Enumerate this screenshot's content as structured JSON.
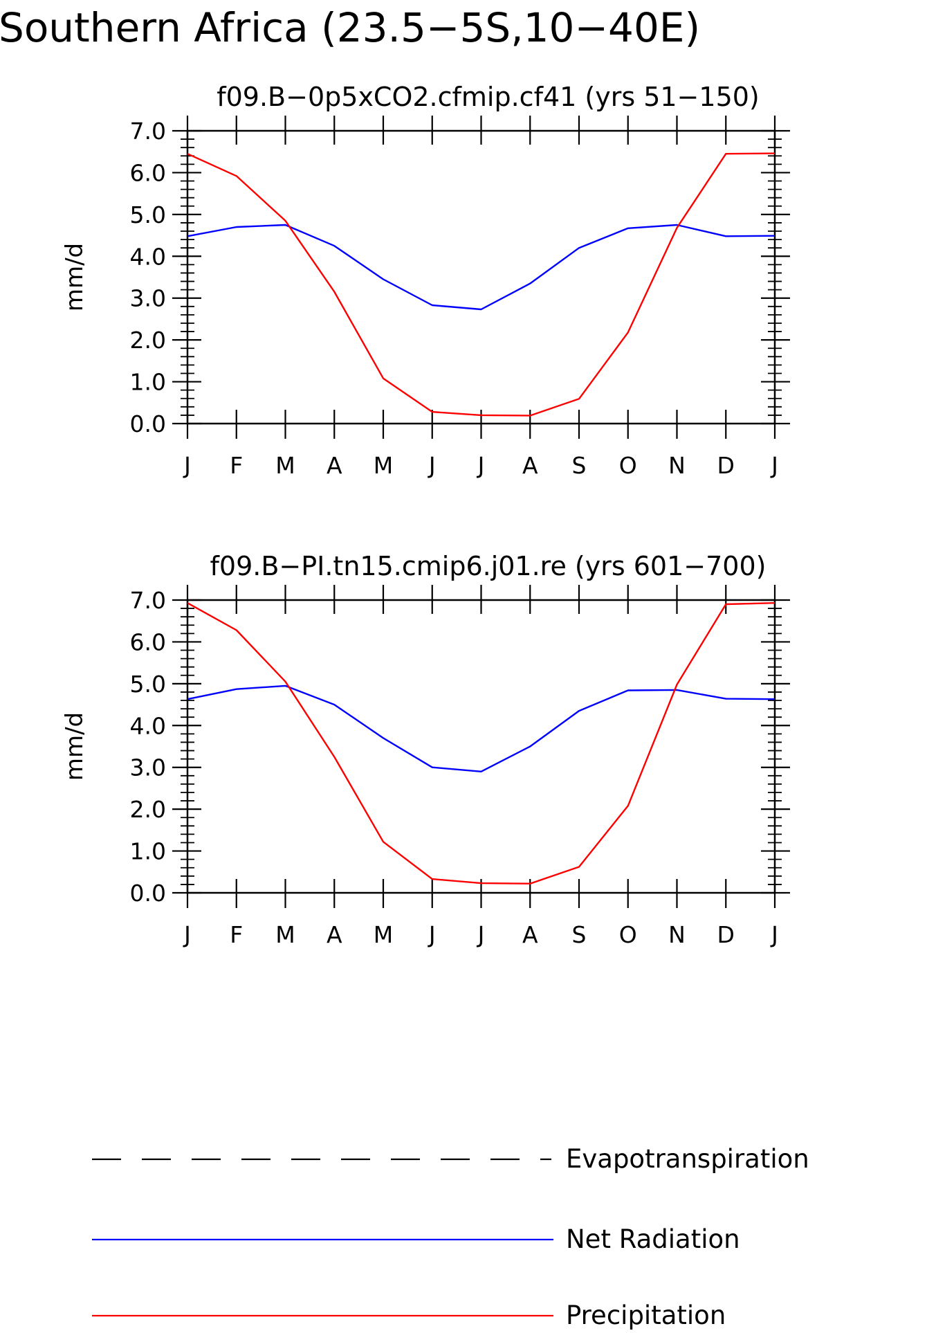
{
  "figure": {
    "title": "Southern Africa (23.5−5S,10−40E)"
  },
  "legend": {
    "placement": "bottom",
    "entries": [
      {
        "label": "Evapotranspiration",
        "color": "#000000",
        "style": "dashed"
      },
      {
        "label": "Net Radiation",
        "color": "#0000ff",
        "style": "solid"
      },
      {
        "label": "Precipitation",
        "color": "#ff0000",
        "style": "solid"
      }
    ]
  },
  "chart_data": [
    {
      "type": "line",
      "title": "f09.B−0p5xCO2.cfmip.cf41 (yrs 51−150)",
      "ylabel": "mm/d",
      "xlabel": "",
      "ylim": [
        0,
        7
      ],
      "yticks": [
        "0.0",
        "1.0",
        "2.0",
        "3.0",
        "4.0",
        "5.0",
        "6.0",
        "7.0"
      ],
      "categories": [
        "J",
        "F",
        "M",
        "A",
        "M",
        "J",
        "J",
        "A",
        "S",
        "O",
        "N",
        "D",
        "J"
      ],
      "grid": false,
      "series": [
        {
          "name": "Net Radiation",
          "color": "#0000ff",
          "values": [
            4.48,
            4.7,
            4.75,
            4.25,
            3.45,
            2.83,
            2.73,
            3.35,
            4.2,
            4.67,
            4.75,
            4.48,
            4.49
          ]
        },
        {
          "name": "Precipitation",
          "color": "#ff0000",
          "values": [
            6.45,
            5.92,
            4.85,
            3.15,
            1.08,
            0.28,
            0.2,
            0.19,
            0.59,
            2.18,
            4.68,
            6.45,
            6.46
          ]
        }
      ]
    },
    {
      "type": "line",
      "title": "f09.B−PI.tn15.cmip6.j01.re (yrs 601−700)",
      "ylabel": "mm/d",
      "xlabel": "",
      "ylim": [
        0,
        7
      ],
      "yticks": [
        "0.0",
        "1.0",
        "2.0",
        "3.0",
        "4.0",
        "5.0",
        "6.0",
        "7.0"
      ],
      "categories": [
        "J",
        "F",
        "M",
        "A",
        "M",
        "J",
        "J",
        "A",
        "S",
        "O",
        "N",
        "D",
        "J"
      ],
      "grid": false,
      "series": [
        {
          "name": "Net Radiation",
          "color": "#0000ff",
          "values": [
            4.63,
            4.87,
            4.95,
            4.5,
            3.7,
            3.0,
            2.9,
            3.5,
            4.35,
            4.84,
            4.85,
            4.64,
            4.63
          ]
        },
        {
          "name": "Precipitation",
          "color": "#ff0000",
          "values": [
            6.93,
            6.28,
            5.05,
            3.25,
            1.22,
            0.33,
            0.23,
            0.22,
            0.62,
            2.08,
            4.98,
            6.9,
            6.93
          ]
        }
      ]
    }
  ]
}
